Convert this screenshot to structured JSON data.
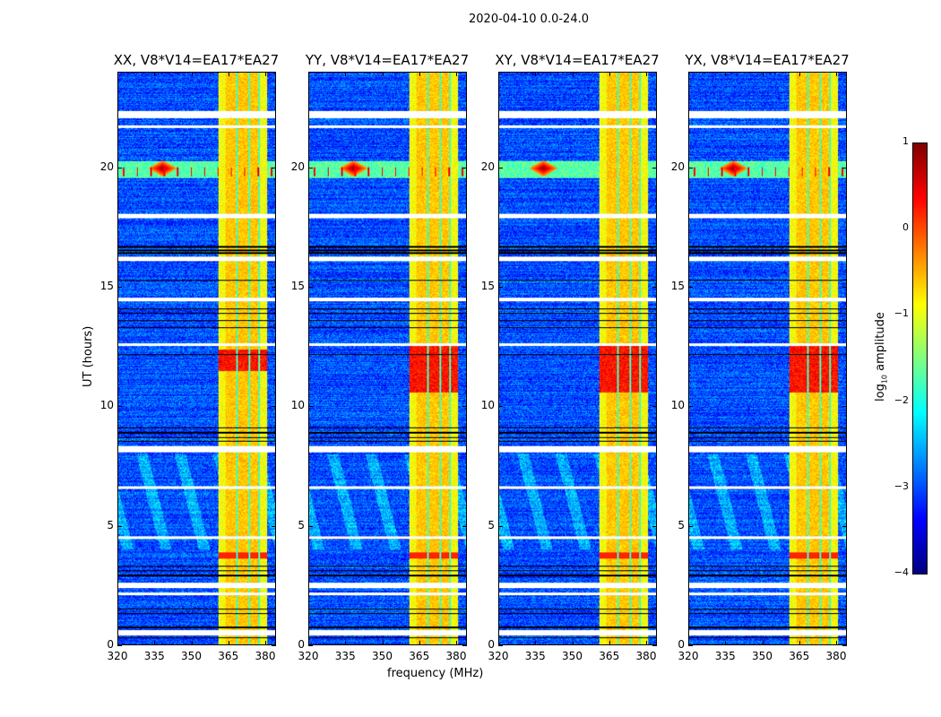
{
  "figure": {
    "suptitle": "2020-04-10 0.0-24.0"
  },
  "colors": {
    "background": "#ffffff",
    "colormap": "jet"
  },
  "chart_data": {
    "type": "heatmap",
    "xlabel": "frequency (MHz)",
    "ylabel": "UT (hours)",
    "xlim": [
      320,
      384.5
    ],
    "ylim": [
      0,
      24
    ],
    "xticks": [
      "320",
      "335",
      "350",
      "365",
      "380"
    ],
    "xtick_values": [
      320,
      335,
      350,
      365,
      380
    ],
    "yticks": [
      "0",
      "5",
      "10",
      "15",
      "20"
    ],
    "ytick_values": [
      0,
      5,
      10,
      15,
      20
    ],
    "panels": [
      {
        "title": "XX, V8*V14=EA17*EA27",
        "strong_band_hours": [
          11.5,
          12.4
        ]
      },
      {
        "title": "YY, V8*V14=EA17*EA27",
        "strong_band_hours": [
          10.6,
          12.6
        ]
      },
      {
        "title": "XY, V8*V14=EA17*EA27",
        "strong_band_hours": [
          10.6,
          12.6
        ]
      },
      {
        "title": "YX, V8*V14=EA17*EA27",
        "strong_band_hours": [
          10.6,
          12.6
        ]
      }
    ],
    "bright_band_mhz": [
      361,
      381
    ],
    "rfi_hours": [
      19.6,
      20.3
    ],
    "flagged_gaps_hours": [
      [
        22.1,
        22.4
      ],
      [
        21.7,
        21.8
      ],
      [
        17.9,
        18.1
      ],
      [
        16.1,
        16.3
      ],
      [
        14.4,
        14.55
      ],
      [
        12.55,
        12.65
      ],
      [
        8.1,
        8.35
      ],
      [
        6.55,
        6.65
      ],
      [
        4.45,
        4.55
      ],
      [
        2.4,
        2.6
      ],
      [
        2.1,
        2.2
      ],
      [
        0.4,
        0.6
      ]
    ],
    "colorbar": {
      "label": "log10 amplitude",
      "range": [
        -4,
        1
      ],
      "ticks": [
        "1",
        "0",
        "−1",
        "−2",
        "−3",
        "−4"
      ],
      "tick_values": [
        1,
        0,
        -1,
        -2,
        -3,
        -4
      ]
    }
  }
}
